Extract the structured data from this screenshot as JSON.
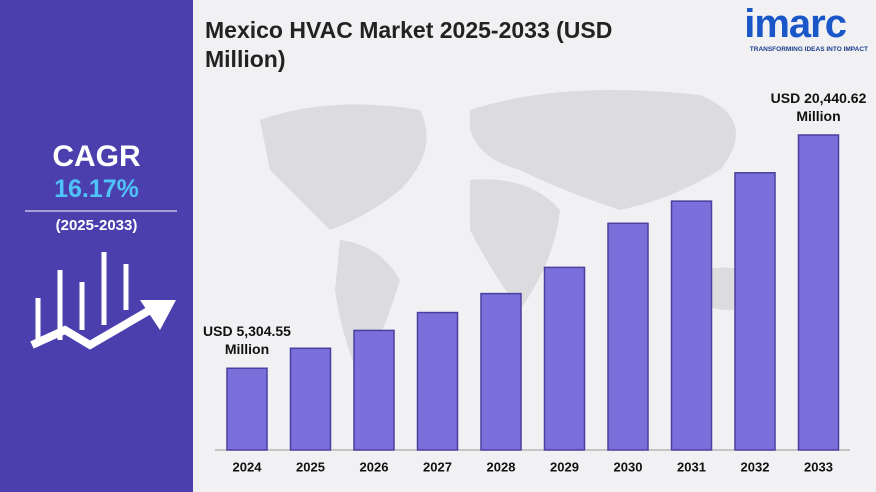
{
  "sidebar": {
    "label": "CAGR",
    "value": "16.17%",
    "period": "(2025-2033)"
  },
  "logo": {
    "name": "imarc",
    "tagline": "TRANSFORMING IDEAS INTO IMPACT"
  },
  "chart_data": {
    "type": "bar",
    "title": "Mexico HVAC Market 2025-2033 (USD Million)",
    "categories": [
      "2024",
      "2025",
      "2026",
      "2027",
      "2028",
      "2029",
      "2030",
      "2031",
      "2032",
      "2033"
    ],
    "values": [
      5304.55,
      6600,
      7760,
      8920,
      10150,
      11850,
      14710,
      16150,
      17990,
      20440.62
    ],
    "value_labels": [
      "USD 5,304.55 Million",
      null,
      null,
      null,
      null,
      null,
      null,
      null,
      null,
      "USD 20,440.62 Million"
    ],
    "color": "#7b6fdc"
  }
}
